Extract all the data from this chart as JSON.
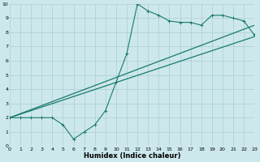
{
  "xlabel": "Humidex (Indice chaleur)",
  "bg_color": "#cde8ec",
  "line_color": "#1a7a6e",
  "grid_color": "#aacdd4",
  "xlim": [
    0,
    23
  ],
  "ylim": [
    0,
    10
  ],
  "xticks": [
    0,
    1,
    2,
    3,
    4,
    5,
    6,
    7,
    8,
    9,
    10,
    11,
    12,
    13,
    14,
    15,
    16,
    17,
    18,
    19,
    20,
    21,
    22,
    23
  ],
  "yticks": [
    0,
    1,
    2,
    3,
    4,
    5,
    6,
    7,
    8,
    9,
    10
  ],
  "main_line_x": [
    0,
    1,
    2,
    3,
    4,
    5,
    6,
    7,
    8,
    9,
    10,
    11,
    12,
    13,
    14,
    15,
    16,
    17,
    18,
    19,
    20,
    21,
    22,
    23
  ],
  "main_line_y": [
    2,
    2,
    2,
    2,
    2,
    1.5,
    0.5,
    1.0,
    1.5,
    2.5,
    4.5,
    6.5,
    10,
    9.5,
    9.2,
    8.8,
    8.7,
    8.7,
    8.5,
    9.2,
    9.2,
    9.0,
    8.8,
    7.8
  ],
  "trend1_x": [
    0,
    23
  ],
  "trend1_y": [
    2.0,
    8.5
  ],
  "trend2_x": [
    0,
    23
  ],
  "trend2_y": [
    2.0,
    7.7
  ],
  "xlabel_fontsize": 6,
  "tick_fontsize": 4.5
}
